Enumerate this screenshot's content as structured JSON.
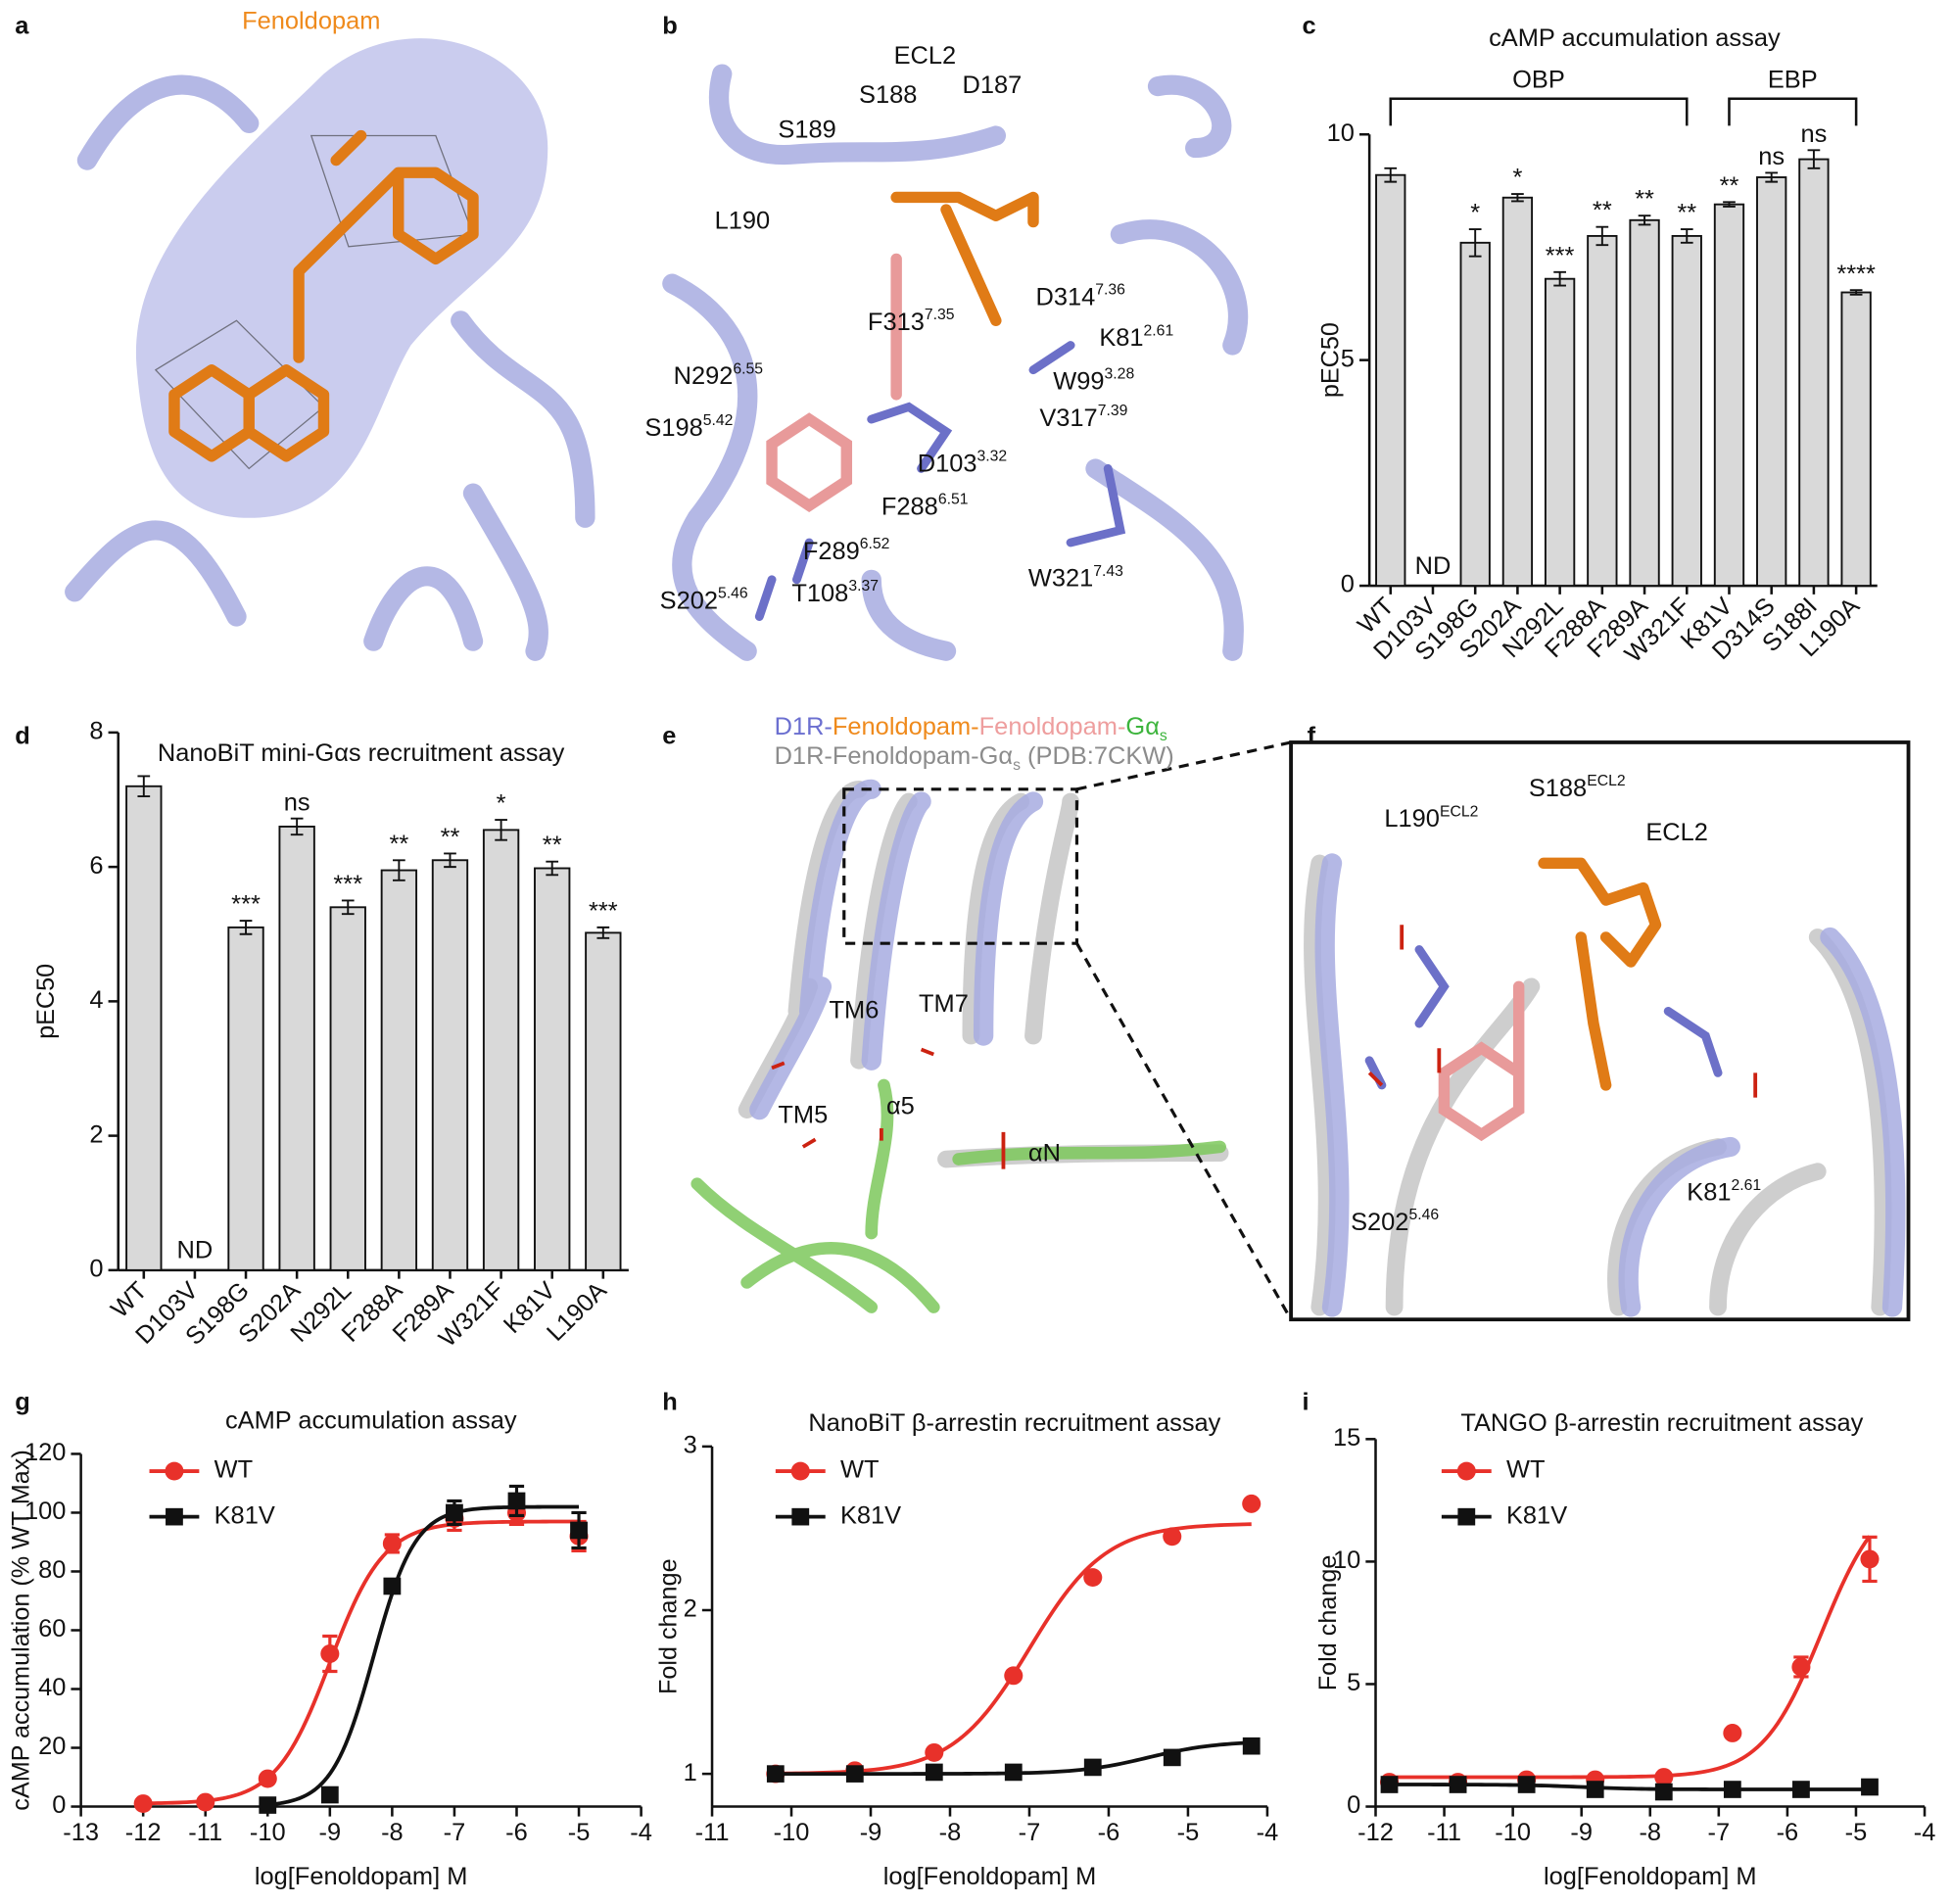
{
  "panel_letters": [
    "a",
    "b",
    "c",
    "d",
    "e",
    "f",
    "g",
    "h",
    "i"
  ],
  "structures": {
    "a": {
      "ligand": "Fenoldopam"
    },
    "b": {
      "labels": [
        {
          "text": "ECL2"
        },
        {
          "text": "S188"
        },
        {
          "text": "D187"
        },
        {
          "text": "S189"
        },
        {
          "text": "L190"
        },
        {
          "text": "D314",
          "sup": "7.36"
        },
        {
          "text": "F313",
          "sup": "7.35"
        },
        {
          "text": "K81",
          "sup": "2.61"
        },
        {
          "text": "N292",
          "sup": "6.55"
        },
        {
          "text": "W99",
          "sup": "3.28"
        },
        {
          "text": "V317",
          "sup": "7.39"
        },
        {
          "text": "S198",
          "sup": "5.42"
        },
        {
          "text": "D103",
          "sup": "3.32"
        },
        {
          "text": "F288",
          "sup": "6.51"
        },
        {
          "text": "F289",
          "sup": "6.52"
        },
        {
          "text": "W321",
          "sup": "7.43"
        },
        {
          "text": "S202",
          "sup": "5.46"
        },
        {
          "text": "T108",
          "sup": "3.37"
        }
      ]
    },
    "e": {
      "legend_line_1": [
        {
          "text": "D1R-",
          "color": "#6b6fd0"
        },
        {
          "text": "Fenoldopam-",
          "color": "#ef8a1c"
        },
        {
          "text": "Fenoldopam-",
          "color": "#ee9e9e"
        },
        {
          "text": "Gα",
          "sub": "s",
          "color": "#3cb43c"
        }
      ],
      "legend_line_2": [
        {
          "text": "D1R-Fenoldopam-Gα",
          "sub": "s",
          "color": "#8c8c8c"
        },
        {
          "text": " (PDB:7CKW)",
          "color": "#8c8c8c"
        }
      ],
      "labels": [
        {
          "text": "TM6"
        },
        {
          "text": "TM7"
        },
        {
          "text": "TM5"
        },
        {
          "text": "α5"
        },
        {
          "text": "αN"
        }
      ]
    },
    "f": {
      "labels": [
        {
          "text": "S188",
          "sup": "ECL2"
        },
        {
          "text": "L190",
          "sup": "ECL2"
        },
        {
          "text": "ECL2"
        },
        {
          "text": "K81",
          "sup": "2.61"
        },
        {
          "text": "S202",
          "sup": "5.46"
        }
      ]
    }
  },
  "chart_data": [
    {
      "type": "bar",
      "title": "cAMP accumulation assay",
      "ylabel": "pEC50",
      "categories": [
        "WT",
        "D103V",
        "S198G",
        "S202A",
        "N292L",
        "F288A",
        "F289A",
        "W321F",
        "K81V",
        "D314S",
        "S188I",
        "L190A"
      ],
      "values": [
        9.1,
        null,
        7.6,
        8.6,
        6.8,
        7.75,
        8.1,
        7.75,
        8.45,
        9.05,
        9.45,
        6.5
      ],
      "errors": [
        0.15,
        null,
        0.3,
        0.08,
        0.15,
        0.2,
        0.1,
        0.15,
        0.05,
        0.1,
        0.2,
        0.05
      ],
      "annotations": [
        null,
        null,
        "*",
        "*",
        "***",
        "**",
        "**",
        "**",
        "**",
        "ns",
        "ns",
        "****"
      ],
      "missing_label": "ND",
      "brackets": [
        {
          "label": "OBP",
          "from": "WT",
          "to": "W321F"
        },
        {
          "label": "EBP",
          "from": "K81V",
          "to": "L190A"
        }
      ],
      "color": "#d9d9d9",
      "ylim": [
        0,
        10
      ],
      "yticks": [
        0,
        5,
        10
      ]
    },
    {
      "type": "bar",
      "title": "NanoBiT mini-Gαs recruitment assay",
      "ylabel": "pEC50",
      "categories": [
        "WT",
        "D103V",
        "S198G",
        "S202A",
        "N292L",
        "F288A",
        "F289A",
        "W321F",
        "K81V",
        "L190A"
      ],
      "values": [
        7.2,
        null,
        5.1,
        6.6,
        5.4,
        5.95,
        6.1,
        6.55,
        5.98,
        5.02
      ],
      "errors": [
        0.15,
        null,
        0.1,
        0.12,
        0.1,
        0.15,
        0.1,
        0.15,
        0.1,
        0.08
      ],
      "annotations": [
        null,
        null,
        "***",
        "ns",
        "***",
        "**",
        "**",
        "*",
        "**",
        "***"
      ],
      "missing_label": "ND",
      "color": "#d9d9d9",
      "ylim": [
        0,
        8
      ],
      "yticks": [
        0,
        2,
        4,
        6,
        8
      ]
    },
    {
      "type": "line",
      "title": "cAMP accumulation assay",
      "xlabel": "log[Fenoldopam] M",
      "ylabel": "cAMP accumulation (% WT Max)",
      "xlim": [
        -13,
        -4
      ],
      "xticks": [
        -13,
        -12,
        -11,
        -10,
        -9,
        -8,
        -7,
        -6,
        -5,
        -4
      ],
      "ylim": [
        0,
        120
      ],
      "yticks": [
        0,
        20,
        40,
        60,
        80,
        100,
        120
      ],
      "series": [
        {
          "name": "WT",
          "color": "#e8312a",
          "marker": "circle",
          "x": [
            -12,
            -11,
            -10,
            -9,
            -8,
            -7,
            -6,
            -5
          ],
          "values": [
            1,
            1.5,
            9.5,
            52,
            89.5,
            98,
            100,
            92
          ],
          "errors": [
            null,
            null,
            null,
            6,
            3,
            4,
            4,
            5
          ],
          "fit": {
            "bottom": 1,
            "top": 97,
            "log_ec50": -9.0,
            "hill": 1
          }
        },
        {
          "name": "K81V",
          "color": "#111111",
          "marker": "square",
          "x": [
            -10,
            -9,
            -8,
            -7,
            -6,
            -5
          ],
          "values": [
            0.5,
            4,
            75,
            100,
            104,
            94
          ],
          "errors": [
            null,
            null,
            null,
            4,
            5,
            6
          ],
          "fit": {
            "bottom": 0,
            "top": 102,
            "log_ec50": -8.3,
            "hill": 1.3
          }
        }
      ]
    },
    {
      "type": "line",
      "title": "NanoBiT β-arrestin recruitment assay",
      "xlabel": "log[Fenoldopam] M",
      "ylabel": "Fold change",
      "xlim": [
        -11,
        -4
      ],
      "xticks": [
        -11,
        -10,
        -9,
        -8,
        -7,
        -6,
        -5,
        -4
      ],
      "ylim": [
        0.8,
        3
      ],
      "yticks": [
        1,
        2,
        3
      ],
      "series": [
        {
          "name": "WT",
          "color": "#e8312a",
          "marker": "circle",
          "x": [
            -10.2,
            -9.2,
            -8.2,
            -7.2,
            -6.2,
            -5.2,
            -4.2
          ],
          "values": [
            1.0,
            1.02,
            1.13,
            1.6,
            2.2,
            2.45,
            2.65
          ],
          "fit": {
            "bottom": 1,
            "top": 2.53,
            "log_ec50": -7.0,
            "hill": 0.9
          }
        },
        {
          "name": "K81V",
          "color": "#111111",
          "marker": "square",
          "x": [
            -10.2,
            -9.2,
            -8.2,
            -7.2,
            -6.2,
            -5.2,
            -4.2
          ],
          "values": [
            1.0,
            1.0,
            1.01,
            1.01,
            1.04,
            1.1,
            1.17
          ],
          "fit": {
            "bottom": 1,
            "top": 1.2,
            "log_ec50": -5.5,
            "hill": 1
          }
        }
      ]
    },
    {
      "type": "line",
      "title": "TANGO β-arrestin recruitment assay",
      "xlabel": "log[Fenoldopam] M",
      "ylabel": "Fold change",
      "xlim": [
        -12,
        -4
      ],
      "xticks": [
        -12,
        -11,
        -10,
        -9,
        -8,
        -7,
        -6,
        -5,
        -4
      ],
      "ylim": [
        0,
        15
      ],
      "yticks": [
        0,
        5,
        10,
        15
      ],
      "series": [
        {
          "name": "WT",
          "color": "#e8312a",
          "marker": "circle",
          "x": [
            -11.8,
            -10.8,
            -9.8,
            -8.8,
            -7.8,
            -6.8,
            -5.8,
            -4.8
          ],
          "values": [
            1.0,
            1.0,
            1.1,
            1.1,
            1.2,
            3.0,
            5.7,
            10.1
          ],
          "errors": [
            null,
            null,
            null,
            null,
            null,
            null,
            0.4,
            0.9
          ],
          "fit": {
            "bottom": 1.2,
            "top": 13,
            "log_ec50": -5.5,
            "hill": 1
          }
        },
        {
          "name": "K81V",
          "color": "#111111",
          "marker": "square",
          "x": [
            -11.8,
            -10.8,
            -9.8,
            -8.8,
            -7.8,
            -6.8,
            -5.8,
            -4.8
          ],
          "values": [
            0.9,
            0.9,
            0.9,
            0.7,
            0.6,
            0.7,
            0.7,
            0.8
          ],
          "fit": {
            "bottom": 0.9,
            "top": 0.7,
            "log_ec50": -9,
            "hill": 1
          }
        }
      ]
    }
  ]
}
